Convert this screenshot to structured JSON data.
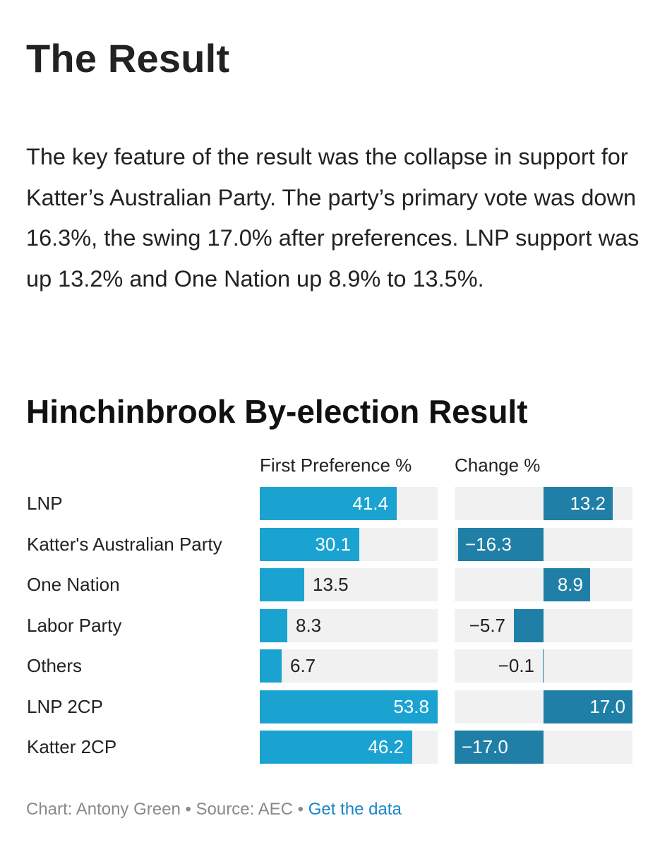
{
  "article": {
    "heading": "The Result",
    "paragraph": "The key feature of the result was the collapse in support for Katter’s Australian Party. The party’s primary vote was down 16.3%, the swing 17.0% after preferences. LNP support was up 13.2% and One Nation up 8.9% to 13.5%."
  },
  "colors": {
    "first_pref_bar": "#1aa3d1",
    "change_bar": "#1f7fa6",
    "track": "#f1f1f1",
    "link": "#1a86c8"
  },
  "chart_data": {
    "type": "bar",
    "title": "Hinchinbrook By-election Result",
    "categories": [
      "LNP",
      "Katter's Australian Party",
      "One Nation",
      "Labor Party",
      "Others",
      "LNP 2CP",
      "Katter 2CP"
    ],
    "series": [
      {
        "name": "First Preference %",
        "values": [
          41.4,
          30.1,
          13.5,
          8.3,
          6.7,
          53.8,
          46.2
        ],
        "labels": [
          "41.4",
          "30.1",
          "13.5",
          "8.3",
          "6.7",
          "53.8",
          "46.2"
        ],
        "xlim": [
          0,
          53.8
        ]
      },
      {
        "name": "Change %",
        "values": [
          13.2,
          -16.3,
          8.9,
          -5.7,
          -0.1,
          17.0,
          -17.0
        ],
        "labels": [
          "13.2",
          "−16.3",
          "8.9",
          "−5.7",
          "−0.1",
          "17.0",
          "−17.0"
        ],
        "xlim": [
          -17.0,
          17.0
        ]
      }
    ]
  },
  "footer": {
    "credit": "Chart: Antony Green",
    "separator1": " • ",
    "source": "Source: AEC",
    "separator2": " • ",
    "link": "Get the data"
  }
}
